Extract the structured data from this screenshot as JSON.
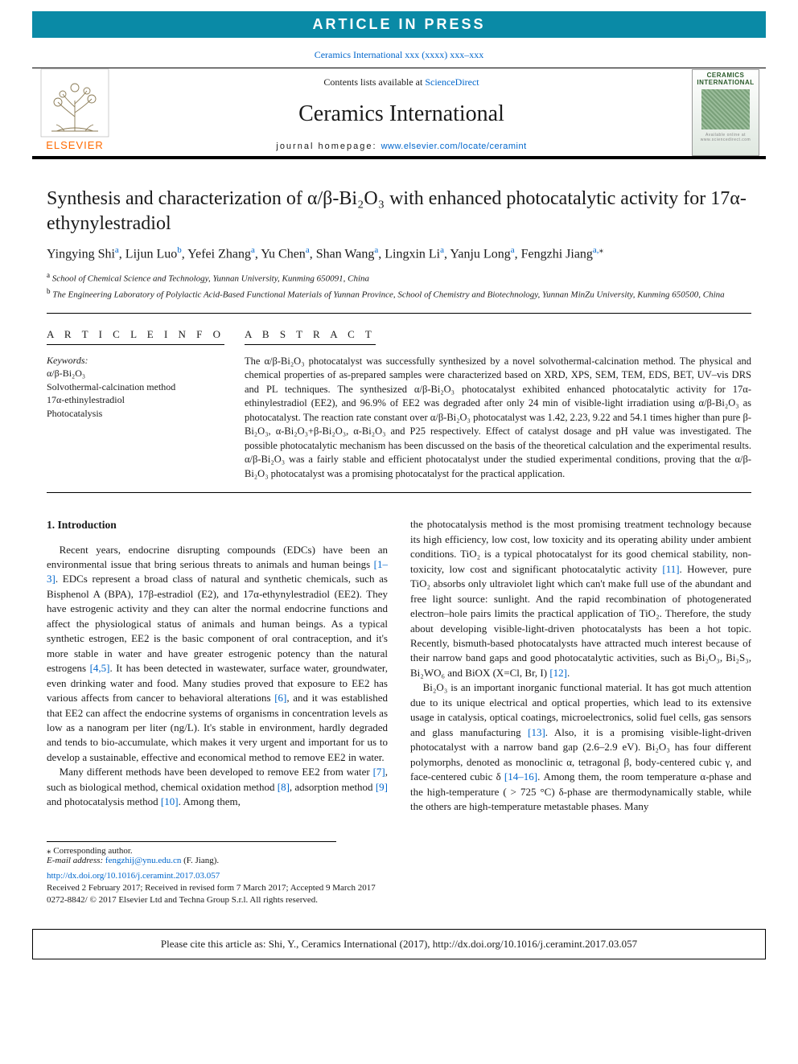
{
  "banner": "ARTICLE IN PRESS",
  "journal_ref": {
    "text": "Ceramics International xxx (xxxx) xxx–xxx",
    "href": "#"
  },
  "masthead": {
    "contents_prefix": "Contents lists available at ",
    "contents_link": "ScienceDirect",
    "journal_title": "Ceramics International",
    "homepage_prefix": "journal homepage: ",
    "homepage_link": "www.elsevier.com/locate/ceramint",
    "publisher_logo_text": "ELSEVIER",
    "cover_label": "CERAMICS INTERNATIONAL"
  },
  "title": "Synthesis and characterization of α/β-Bi₂O₃ with enhanced photocatalytic activity for 17α-ethynylestradiol",
  "authors_html": "Yingying Shi<sup>a</sup>, Lijun Luo<sup>b</sup>, Yefei Zhang<sup>a</sup>, Yu Chen<sup>a</sup>, Shan Wang<sup>a</sup>, Lingxin Li<sup>a</sup>, Yanju Long<sup>a</sup>, Fengzhi Jiang<sup>a,</sup>",
  "authors": [
    {
      "name": "Yingying Shi",
      "aff": "a"
    },
    {
      "name": "Lijun Luo",
      "aff": "b"
    },
    {
      "name": "Yefei Zhang",
      "aff": "a"
    },
    {
      "name": "Yu Chen",
      "aff": "a"
    },
    {
      "name": "Shan Wang",
      "aff": "a"
    },
    {
      "name": "Lingxin Li",
      "aff": "a"
    },
    {
      "name": "Yanju Long",
      "aff": "a"
    },
    {
      "name": "Fengzhi Jiang",
      "aff": "a",
      "corr": true
    }
  ],
  "affiliations": [
    {
      "key": "a",
      "text": "School of Chemical Science and Technology, Yunnan University, Kunming 650091, China"
    },
    {
      "key": "b",
      "text": "The Engineering Laboratory of Polylactic Acid-Based Functional Materials of Yunnan Province, School of Chemistry and Biotechnology, Yunnan MinZu University, Kunming 650500, China"
    }
  ],
  "section_heads": {
    "info": "A R T I C L E  I N F O",
    "abstract": "A B S T R A C T"
  },
  "keywords_label": "Keywords:",
  "keywords": [
    "α/β-Bi₂O₃",
    "Solvothermal-calcination method",
    "17α-ethinylestradiol",
    "Photocatalysis"
  ],
  "abstract": "The α/β-Bi₂O₃ photocatalyst was successfully synthesized by a novel solvothermal-calcination method. The physical and chemical properties of as-prepared samples were characterized based on XRD, XPS, SEM, TEM, EDS, BET, UV–vis DRS and PL techniques. The synthesized α/β-Bi₂O₃ photocatalyst exhibited enhanced photocatalytic activity for 17α-ethinylestradiol (EE2), and 96.9% of EE2 was degraded after only 24 min of visible-light irradiation using α/β-Bi₂O₃ as photocatalyst. The reaction rate constant over α/β-Bi₂O₃ photocatalyst was 1.42, 2.23, 9.22 and 54.1 times higher than pure β-Bi₂O₃, α-Bi₂O₃+β-Bi₂O₃, α-Bi₂O₃ and P25 respectively. Effect of catalyst dosage and pH value was investigated. The possible photocatalytic mechanism has been discussed on the basis of the theoretical calculation and the experimental results. α/β-Bi₂O₃ was a fairly stable and efficient photocatalyst under the studied experimental conditions, proving that the α/β-Bi₂O₃ photocatalyst was a promising photocatalyst for the practical application.",
  "intro_head": "1. Introduction",
  "intro_col1": [
    "Recent years, endocrine disrupting compounds (EDCs) have been an environmental issue that bring serious threats to animals and human beings <span class=\"ref\">[1–3]</span>. EDCs represent a broad class of natural and synthetic chemicals, such as Bisphenol A (BPA), 17β-estradiol (E2), and 17α-ethynylestradiol (EE2). They have estrogenic activity and they can alter the normal endocrine functions and affect the physiological status of animals and human beings. As a typical synthetic estrogen, EE2 is the basic component of oral contraception, and it's more stable in water and have greater estrogenic potency than the natural estrogens <span class=\"ref\">[4,5]</span>. It has been detected in wastewater, surface water, groundwater, even drinking water and food. Many studies proved that exposure to EE2 has various affects from cancer to behavioral alterations <span class=\"ref\">[6]</span>, and it was established that EE2 can affect the endocrine systems of organisms in concentration levels as low as a nanogram per liter (ng/L). It's stable in environment, hardly degraded and tends to bio-accumulate, which makes it very urgent and important for us to develop a sustainable, effective and economical method to remove EE2 in water.",
    "Many different methods have been developed to remove EE2 from water <span class=\"ref\">[7]</span>, such as biological method, chemical oxidation method <span class=\"ref\">[8]</span>, adsorption method <span class=\"ref\">[9]</span> and photocatalysis method <span class=\"ref\">[10]</span>. Among them,"
  ],
  "intro_col2": [
    "the photocatalysis method is the most promising treatment technology because its high efficiency, low cost, low toxicity and its operating ability under ambient conditions. TiO₂ is a typical photocatalyst for its good chemical stability, non-toxicity, low cost and significant photocatalytic activity <span class=\"ref\">[11]</span>. However, pure TiO₂ absorbs only ultraviolet light which can't make full use of the abundant and free light source: sunlight. And the rapid recombination of photogenerated electron–hole pairs limits the practical application of TiO₂. Therefore, the study about developing visible-light-driven photocatalysts has been a hot topic. Recently, bismuth-based photocatalysts have attracted much interest because of their narrow band gaps and good photocatalytic activities, such as Bi₂O₃, Bi₂S₃, Bi₂WO₆ and BiOX (X=Cl, Br, I) <span class=\"ref\">[12]</span>.",
    "Bi₂O₃ is an important inorganic functional material. It has got much attention due to its unique electrical and optical properties, which lead to its extensive usage in catalysis, optical coatings, microelectronics, solid fuel cells, gas sensors and glass manufacturing <span class=\"ref\">[13]</span>. Also, it is a promising visible-light-driven photocatalyst with a narrow band gap (2.6–2.9 eV). Bi₂O₃ has four different polymorphs, denoted as monoclinic α, tetragonal β, body-centered cubic γ, and face-centered cubic δ <span class=\"ref\">[14–16]</span>. Among them, the room temperature α-phase and the high-temperature ( > 725 °C) δ-phase are thermodynamically stable, while the others are high-temperature metastable phases. Many"
  ],
  "footnotes": {
    "corr": "⁎ Corresponding author.",
    "email_label": "E-mail address:",
    "email": "fengzhij@ynu.edu.cn",
    "email_name": "(F. Jiang)."
  },
  "pub": {
    "doi": "http://dx.doi.org/10.1016/j.ceramint.2017.03.057",
    "received": "Received 2 February 2017; Received in revised form 7 March 2017; Accepted 9 March 2017",
    "copyright": "0272-8842/ © 2017 Elsevier Ltd and Techna Group S.r.l. All rights reserved."
  },
  "cite_box": "Please cite this article as: Shi, Y., Ceramics International (2017), http://dx.doi.org/10.1016/j.ceramint.2017.03.057",
  "colors": {
    "banner_bg": "#0a8aa6",
    "link": "#0066cc",
    "elsevier_orange": "#ff6a00"
  }
}
